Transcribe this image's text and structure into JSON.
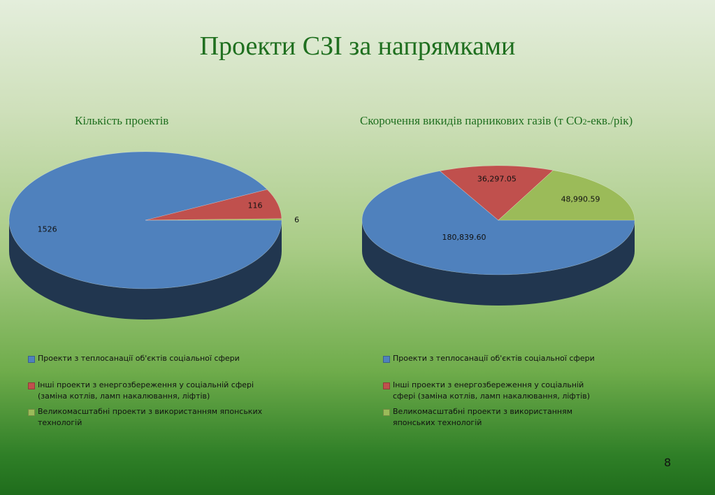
{
  "title": "Проекти СЗІ за напрямками",
  "chart_data": [
    {
      "type": "pie",
      "title": "Кількість проектів",
      "categories": [
        "Проекти з теплосанації об'єктів соціальної сфери",
        "Інші проекти з енергозбереження у соціальній сфері (заміна котлів, ламп накалювання, ліфтів)",
        "Великомасштабні проекти з використанням японських технологій"
      ],
      "values": [
        1526,
        116,
        6
      ],
      "data_labels": [
        "1526",
        "116",
        "6"
      ],
      "colors": [
        "#4f81bd",
        "#c0504d",
        "#9bbb59"
      ],
      "legend_position": "bottom",
      "legend": [
        {
          "lines": [
            "Проекти з теплосанації об'єктів соціальної сфери"
          ]
        },
        {
          "lines": [
            "Інші проекти з енергозбереження у соціальній сфері",
            "(заміна котлів, ламп накалювання, ліфтів)"
          ]
        },
        {
          "lines": [
            "Великомасштабні проекти з використанням японських",
            "технологій"
          ]
        }
      ]
    },
    {
      "type": "pie",
      "title": "Скорочення викидів парникових газів (т СО2-екв./рік)",
      "categories": [
        "Проекти з теплосанації об'єктів соціальної сфери",
        "Інші проекти з енергозбереження у соціальній сфері (заміна котлів, ламп накалювання, ліфтів)",
        "Великомасштабні проекти з використанням японських технологій"
      ],
      "values": [
        180839.6,
        36297.05,
        48990.59
      ],
      "data_labels": [
        "180,839.60",
        "36,297.05",
        "48,990.59"
      ],
      "colors": [
        "#4f81bd",
        "#c0504d",
        "#9bbb59"
      ],
      "legend_position": "bottom",
      "legend": [
        {
          "lines": [
            "Проекти з теплосанації об'єктів соціальної сфери"
          ]
        },
        {
          "lines": [
            "Інші проекти з енергозбереження у соціальній",
            "сфері (заміна котлів, ламп накалювання, ліфтів)"
          ]
        },
        {
          "lines": [
            "Великомасштабні проекти з використанням",
            "японських технологій"
          ]
        }
      ]
    }
  ],
  "page_number": "8"
}
